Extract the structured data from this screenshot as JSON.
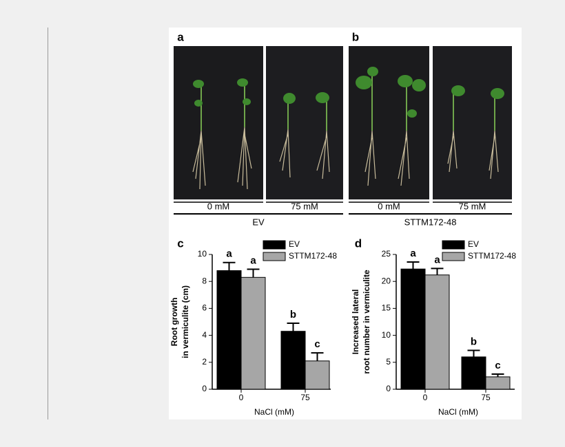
{
  "photo_panels": [
    {
      "label": "a",
      "captions": [
        "0 mM",
        "75 mM"
      ],
      "group": "EV"
    },
    {
      "label": "b",
      "captions": [
        "0 mM",
        "75 mM"
      ],
      "group": "STTM172-48"
    }
  ],
  "chart_data": [
    {
      "type": "bar",
      "panel_label": "c",
      "ylabel": [
        "Root growth",
        "in vermiculite (cm)"
      ],
      "xlabel": "NaCl (mM)",
      "categories": [
        "0",
        "75"
      ],
      "series": [
        {
          "name": "EV",
          "color": "#000000",
          "values": [
            8.8,
            4.3
          ],
          "errors": [
            0.6,
            0.6
          ],
          "letters": [
            "a",
            "b"
          ]
        },
        {
          "name": "STTM172-48",
          "color": "#a6a6a6",
          "values": [
            8.3,
            2.1
          ],
          "errors": [
            0.6,
            0.6
          ],
          "letters": [
            "a",
            "c"
          ]
        }
      ],
      "ylim": [
        0,
        10
      ],
      "yticks": [
        0,
        2,
        4,
        6,
        8,
        10
      ]
    },
    {
      "type": "bar",
      "panel_label": "d",
      "ylabel": [
        "Increased lateral",
        "root number in vermiculite"
      ],
      "xlabel": "NaCl (mM)",
      "categories": [
        "0",
        "75"
      ],
      "series": [
        {
          "name": "EV",
          "color": "#000000",
          "values": [
            22.3,
            6.0
          ],
          "errors": [
            1.3,
            1.2
          ],
          "letters": [
            "a",
            "b"
          ]
        },
        {
          "name": "STTM172-48",
          "color": "#a6a6a6",
          "values": [
            21.2,
            2.3
          ],
          "errors": [
            1.2,
            0.5
          ],
          "letters": [
            "a",
            "c"
          ]
        }
      ],
      "ylim": [
        0,
        25
      ],
      "yticks": [
        0,
        5,
        10,
        15,
        20,
        25
      ]
    }
  ]
}
